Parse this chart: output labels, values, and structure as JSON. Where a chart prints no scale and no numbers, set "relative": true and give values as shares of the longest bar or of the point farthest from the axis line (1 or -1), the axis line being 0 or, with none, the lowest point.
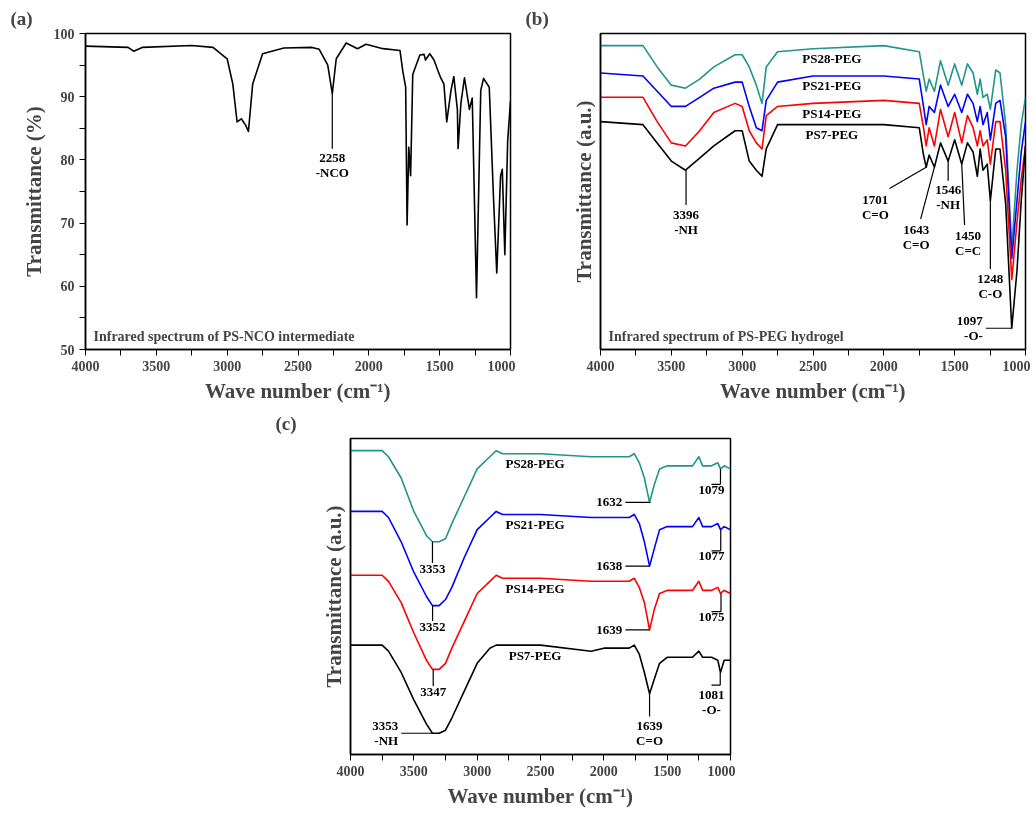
{
  "chart_data": [
    {
      "type": "line",
      "title": "(a)",
      "xlabel": "Wave number (cm⁻¹)",
      "ylabel": "Transmittance (%)",
      "grid": false,
      "x": [
        4000,
        3700,
        3660,
        3600,
        3250,
        3100,
        3000,
        2960,
        2930,
        2900,
        2870,
        2850,
        2820,
        2750,
        2600,
        2400,
        2350,
        2290,
        2258,
        2230,
        2160,
        2080,
        2020,
        1900,
        1780,
        1760,
        1740,
        1730,
        1718,
        1705,
        1690,
        1640,
        1610,
        1600,
        1570,
        1540,
        1510,
        1493,
        1470,
        1450,
        1420,
        1400,
        1375,
        1370,
        1350,
        1325,
        1290,
        1270,
        1240,
        1210,
        1190,
        1150,
        1120,
        1097,
        1070,
        1058,
        1040,
        1020,
        1000
      ],
      "series": [
        {
          "color": "#000000",
          "values": [
            98,
            97.8,
            97.2,
            97.8,
            98.1,
            97.8,
            96,
            92,
            86,
            86.5,
            85.5,
            84.5,
            92,
            96.8,
            97.7,
            97.8,
            97.5,
            95,
            90.5,
            96,
            98.5,
            97.6,
            98.3,
            97.6,
            97.3,
            94,
            91.5,
            69.7,
            82,
            77.5,
            93.5,
            96.6,
            96.7,
            95.8,
            96.8,
            95.8,
            94,
            93,
            92,
            86,
            91,
            93.2,
            88,
            81.8,
            89,
            93,
            88,
            89.8,
            58.2,
            91,
            92.9,
            91.5,
            74,
            62.1,
            77.5,
            78.5,
            65,
            83,
            89.3
          ]
        }
      ],
      "xlim": [
        4000,
        1000
      ],
      "xticks": [
        4000,
        {
          "value": 3750,
          "label": null
        },
        3500,
        {
          "value": 3250,
          "label": null
        },
        3000,
        {
          "value": 2750,
          "label": null
        },
        2500,
        {
          "value": 2250,
          "label": null
        },
        2000,
        {
          "value": 1750,
          "label": null
        },
        1500,
        {
          "value": 1250,
          "label": null
        },
        1000
      ],
      "ylim": [
        50,
        100
      ],
      "yticks": [
        50,
        {
          "value": 55,
          "label": null
        },
        60,
        {
          "value": 65,
          "label": null
        },
        70,
        {
          "value": 75,
          "label": null
        },
        80,
        {
          "value": 85,
          "label": null
        },
        90,
        {
          "value": 95,
          "label": null
        },
        100
      ],
      "annotations": [
        {
          "text": "2258\n-NCO",
          "x": 2258,
          "y": 90.5
        },
        "Infrared spectrum of PS-NCO intermediate"
      ]
    },
    {
      "type": "line",
      "title": "(b)",
      "xlabel": "Wave number (cm⁻¹)",
      "ylabel": "Transmittance (a.u.)",
      "grid": false,
      "relative": true,
      "x": [
        4000,
        3700,
        3600,
        3500,
        3400,
        3300,
        3200,
        3050,
        3000,
        2950,
        2900,
        2860,
        2830,
        2750,
        2500,
        2000,
        1750,
        1720,
        1701,
        1680,
        1643,
        1600,
        1546,
        1500,
        1450,
        1410,
        1370,
        1340,
        1320,
        1300,
        1270,
        1248,
        1210,
        1180,
        1140,
        1097,
        1060,
        1030,
        1000
      ],
      "series": [
        {
          "name": "PS28-PEG",
          "color": "#21948c",
          "values": [
            1.0,
            1.0,
            0.93,
            0.87,
            0.86,
            0.89,
            0.93,
            0.97,
            0.97,
            0.93,
            0.87,
            0.81,
            0.93,
            0.98,
            0.99,
            1.0,
            0.98,
            0.9,
            0.85,
            0.89,
            0.85,
            0.95,
            0.87,
            0.94,
            0.87,
            0.94,
            0.91,
            0.84,
            0.89,
            0.83,
            0.84,
            0.79,
            0.92,
            0.91,
            0.74,
            0.33,
            0.59,
            0.74,
            0.83
          ]
        },
        {
          "name": "PS21-PEG",
          "color": "#0000ff",
          "values": [
            0.91,
            0.9,
            0.85,
            0.8,
            0.8,
            0.83,
            0.86,
            0.88,
            0.88,
            0.8,
            0.73,
            0.72,
            0.82,
            0.88,
            0.9,
            0.9,
            0.89,
            0.8,
            0.74,
            0.8,
            0.78,
            0.87,
            0.8,
            0.84,
            0.78,
            0.84,
            0.81,
            0.75,
            0.8,
            0.74,
            0.78,
            0.69,
            0.81,
            0.82,
            0.7,
            0.3,
            0.49,
            0.65,
            0.75
          ]
        },
        {
          "name": "PS14-PEG",
          "color": "#ff0000",
          "values": [
            0.83,
            0.83,
            0.75,
            0.68,
            0.67,
            0.72,
            0.78,
            0.81,
            0.8,
            0.72,
            0.68,
            0.66,
            0.77,
            0.8,
            0.81,
            0.82,
            0.81,
            0.73,
            0.67,
            0.73,
            0.67,
            0.79,
            0.7,
            0.78,
            0.68,
            0.77,
            0.73,
            0.67,
            0.72,
            0.67,
            0.69,
            0.61,
            0.75,
            0.75,
            0.59,
            0.23,
            0.42,
            0.56,
            0.67
          ]
        },
        {
          "name": "PS7-PEG",
          "color": "#000000",
          "values": [
            0.75,
            0.74,
            0.68,
            0.62,
            0.59,
            0.63,
            0.67,
            0.72,
            0.72,
            0.62,
            0.59,
            0.57,
            0.66,
            0.74,
            0.74,
            0.74,
            0.73,
            0.64,
            0.6,
            0.64,
            0.6,
            0.68,
            0.62,
            0.69,
            0.61,
            0.68,
            0.65,
            0.57,
            0.66,
            0.59,
            0.61,
            0.49,
            0.66,
            0.66,
            0.48,
            0.07,
            0.26,
            0.49,
            0.67
          ]
        }
      ],
      "xlim": [
        4000,
        1000
      ],
      "xticks": [
        4000,
        {
          "value": 3750,
          "label": null
        },
        3500,
        {
          "value": 3250,
          "label": null
        },
        3000,
        {
          "value": 2750,
          "label": null
        },
        2500,
        {
          "value": 2250,
          "label": null
        },
        2000,
        {
          "value": 1750,
          "label": null
        },
        1500,
        {
          "value": 1250,
          "label": null
        },
        1000
      ],
      "annotations": [
        {
          "text": "3396\n-NH",
          "x": 3396,
          "y": 0.59
        },
        {
          "text": "1701\nC=O",
          "x": 1701,
          "y": 0.6
        },
        {
          "text": "1643\nC=O",
          "x": 1643,
          "y": 0.6
        },
        {
          "text": "1546\n-NH",
          "x": 1546,
          "y": 0.62
        },
        {
          "text": "1450\nC=C",
          "x": 1450,
          "y": 0.61
        },
        {
          "text": "1248\nC-O",
          "x": 1248,
          "y": 0.49
        },
        {
          "text": "1097\n-O-",
          "x": 1097,
          "y": 0.07
        },
        "Infrared spectrum of PS-PEG hydrogel"
      ]
    },
    {
      "type": "line",
      "title": "(c)",
      "xlabel": "Wave number (cm⁻¹)",
      "ylabel": "Transmittance (a.u.)",
      "grid": false,
      "relative": true,
      "x": [
        4000,
        3750,
        3700,
        3600,
        3500,
        3400,
        3353,
        3300,
        3250,
        3200,
        3100,
        3000,
        2900,
        2850,
        2800,
        2500,
        2100,
        2000,
        1800,
        1760,
        1720,
        1680,
        1639,
        1600,
        1560,
        1500,
        1400,
        1300,
        1250,
        1220,
        1150,
        1100,
        1079,
        1050,
        1000
      ],
      "series": [
        {
          "name": "PS28-PEG",
          "color": "#21948c",
          "values": [
            1.0,
            1.0,
            0.98,
            0.91,
            0.8,
            0.72,
            0.7,
            0.7,
            0.71,
            0.76,
            0.85,
            0.94,
            0.98,
            1.0,
            0.99,
            0.99,
            0.98,
            0.98,
            0.98,
            0.99,
            0.96,
            0.91,
            0.83,
            0.89,
            0.94,
            0.95,
            0.95,
            0.95,
            0.98,
            0.95,
            0.95,
            0.96,
            0.94,
            0.95,
            0.94
          ]
        },
        {
          "name": "PS21-PEG",
          "color": "#0000ff",
          "values": [
            0.8,
            0.8,
            0.78,
            0.7,
            0.6,
            0.52,
            0.49,
            0.49,
            0.51,
            0.55,
            0.65,
            0.74,
            0.78,
            0.8,
            0.79,
            0.79,
            0.78,
            0.78,
            0.78,
            0.79,
            0.76,
            0.7,
            0.62,
            0.68,
            0.74,
            0.75,
            0.75,
            0.75,
            0.78,
            0.75,
            0.75,
            0.76,
            0.74,
            0.75,
            0.74
          ]
        },
        {
          "name": "PS14-PEG",
          "color": "#ff0000",
          "values": [
            0.59,
            0.59,
            0.57,
            0.5,
            0.4,
            0.31,
            0.28,
            0.28,
            0.3,
            0.35,
            0.44,
            0.53,
            0.57,
            0.59,
            0.58,
            0.58,
            0.57,
            0.57,
            0.57,
            0.58,
            0.55,
            0.5,
            0.41,
            0.48,
            0.53,
            0.54,
            0.54,
            0.54,
            0.57,
            0.54,
            0.54,
            0.55,
            0.53,
            0.54,
            0.53
          ]
        },
        {
          "name": "PS7-PEG",
          "color": "#000000",
          "values": [
            0.36,
            0.36,
            0.34,
            0.27,
            0.18,
            0.1,
            0.07,
            0.07,
            0.08,
            0.12,
            0.21,
            0.3,
            0.35,
            0.36,
            0.36,
            0.36,
            0.34,
            0.35,
            0.35,
            0.36,
            0.33,
            0.27,
            0.2,
            0.25,
            0.3,
            0.32,
            0.32,
            0.32,
            0.34,
            0.32,
            0.32,
            0.31,
            0.27,
            0.31,
            0.31
          ]
        }
      ],
      "xlim": [
        4000,
        1000
      ],
      "xticks": [
        4000,
        {
          "value": 3750,
          "label": null
        },
        3500,
        {
          "value": 3250,
          "label": null
        },
        3000,
        {
          "value": 2750,
          "label": null
        },
        2500,
        {
          "value": 2250,
          "label": null
        },
        2000,
        {
          "value": 1750,
          "label": null
        },
        1500,
        {
          "value": 1250,
          "label": null
        },
        1000
      ],
      "annotations": [
        {
          "text": "3353",
          "x": 3353,
          "y": 0.7
        },
        {
          "text": "3352",
          "x": 3352,
          "y": 0.49
        },
        {
          "text": "3347",
          "x": 3347,
          "y": 0.28
        },
        {
          "text": "3353\n-NH",
          "x": 3353,
          "y": 0.07
        },
        {
          "text": "1632",
          "x": 1632,
          "y": 0.83
        },
        {
          "text": "1638",
          "x": 1638,
          "y": 0.62
        },
        {
          "text": "1639",
          "x": 1639,
          "y": 0.41
        },
        {
          "text": "1639\nC=O",
          "x": 1639,
          "y": 0.2
        },
        {
          "text": "1079",
          "x": 1079,
          "y": 0.94
        },
        {
          "text": "1077",
          "x": 1077,
          "y": 0.74
        },
        {
          "text": "1075",
          "x": 1075,
          "y": 0.53
        },
        {
          "text": "1081\n-O-",
          "x": 1081,
          "y": 0.27
        }
      ]
    }
  ]
}
